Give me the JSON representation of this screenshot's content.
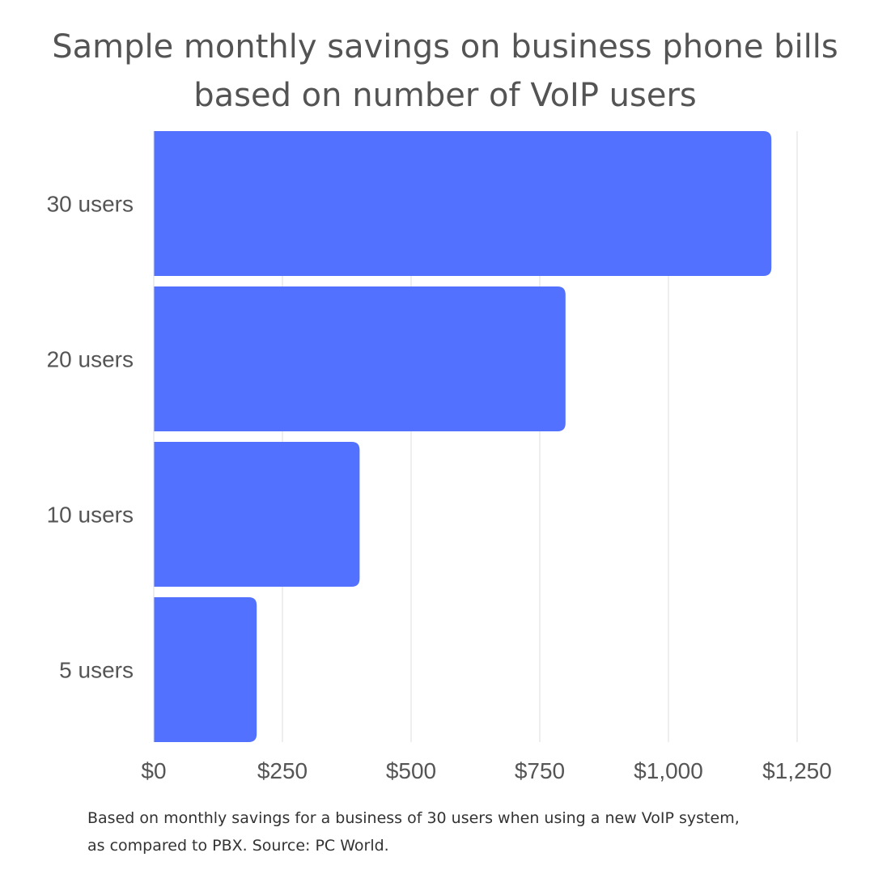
{
  "chart_data": {
    "type": "bar",
    "orientation": "horizontal",
    "title": "Sample monthly savings on business phone bills based on number of VoIP users",
    "title_lines": [
      "Sample monthly savings on business phone bills",
      "based on number of VoIP users"
    ],
    "categories": [
      "30 users",
      "20 users",
      "10 users",
      "5 users"
    ],
    "values": [
      1200,
      800,
      400,
      200
    ],
    "xlim": [
      0,
      1250
    ],
    "xticks": [
      0,
      250,
      500,
      750,
      1000,
      1250
    ],
    "xtick_labels": [
      "$0",
      "$250",
      "$500",
      "$750",
      "$1,000",
      "$1,250"
    ],
    "xlabel": "",
    "ylabel": "",
    "grid": "vertical",
    "bar_color": "#5271FF",
    "footnote_lines": [
      "Based on monthly savings for a business of 30 users when using a new VoIP system,",
      "as compared to PBX. Source: PC World."
    ]
  }
}
